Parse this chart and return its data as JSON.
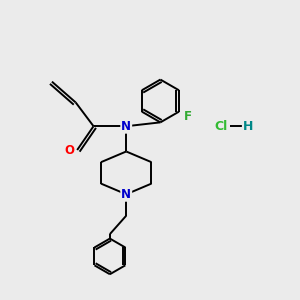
{
  "background_color": "#ebebeb",
  "atom_colors": {
    "O": "#ff0000",
    "N": "#0000cc",
    "F": "#33aa33",
    "Cl": "#33bb33",
    "H": "#008888",
    "C": "#000000"
  },
  "bond_color": "#000000",
  "bond_width": 1.4,
  "font_size_atom": 8.5,
  "hcl_font_size": 9
}
